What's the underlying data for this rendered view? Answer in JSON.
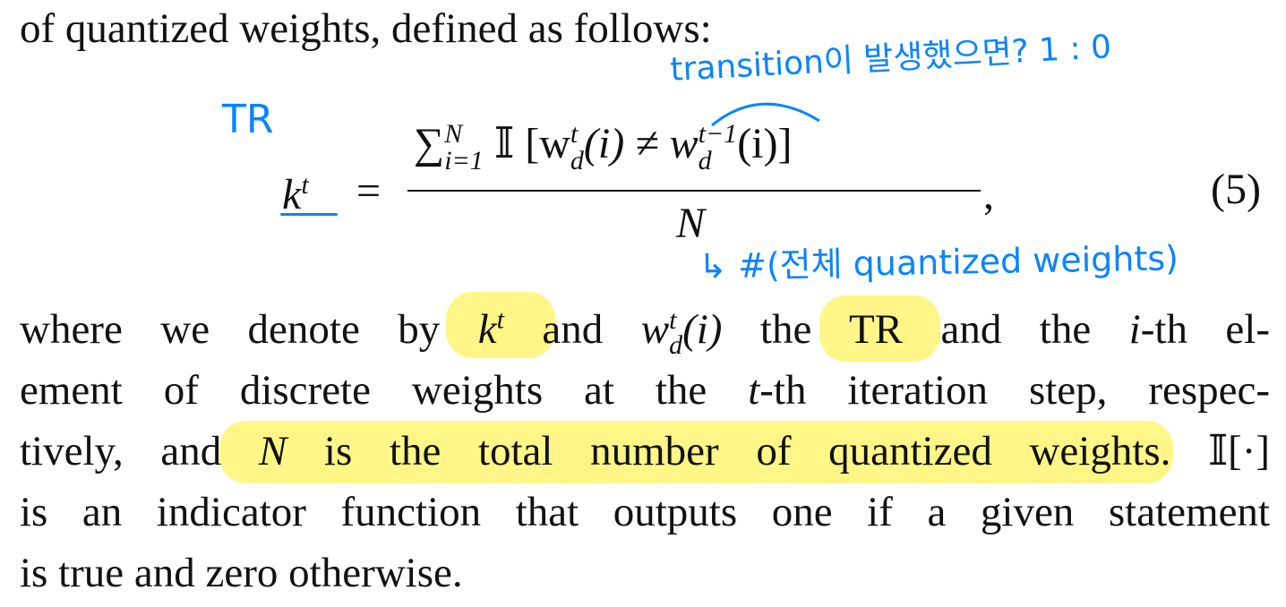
{
  "paper": {
    "line1": "of quantized weights, defined as follows:",
    "equation": {
      "lhs": "k",
      "lhs_sup": "t",
      "equals": "=",
      "sum": "∑",
      "sum_sup": "N",
      "sum_sub": "i=1",
      "indicator": "𝕀",
      "numerator_body": "[w",
      "w_sup": "t",
      "w_sub": "d",
      "arg1": "(i) ≠ w",
      "w2_sup": "t−1",
      "w2_sub": "d",
      "arg2": "(i)]",
      "denominator": "N",
      "comma": ",",
      "number": "(5)"
    },
    "para": [
      "where we denote by k^t and w_d^t(i) the TR and the i-th el-",
      "ement of discrete weights at the t-th iteration step, respec-",
      "tively, and N is the total number of quantized weights. 𝕀[·]",
      "is an indicator function that outputs one if a given statement",
      "is true and zero otherwise."
    ],
    "p1": {
      "a": "where we denote by ",
      "k": "k",
      "t": "t",
      "b": " and ",
      "w": "w",
      "wt": "t",
      "wd": "d",
      "c": "(i)",
      "d": " the TR and the ",
      "i": "i",
      "e": "-th el-"
    },
    "p2": {
      "a": "ement of discrete weights at the ",
      "t": "t",
      "b": "-th iteration step, respec-"
    },
    "p3": {
      "a": "tively, and ",
      "n": "N",
      "b": " is the total number of quantized weights. 𝕀[·]"
    },
    "p4": "is an indicator function that outputs one if a given statement",
    "p5": "is true and zero otherwise."
  },
  "annotations": {
    "tr_label": "TR",
    "transition_note": "transition이 발생했으면? 1 : 0",
    "denominator_note": "↳ #(전체 quantized weights)",
    "ink_color": "#0a84ff",
    "highlight_color": "#fff57a"
  }
}
